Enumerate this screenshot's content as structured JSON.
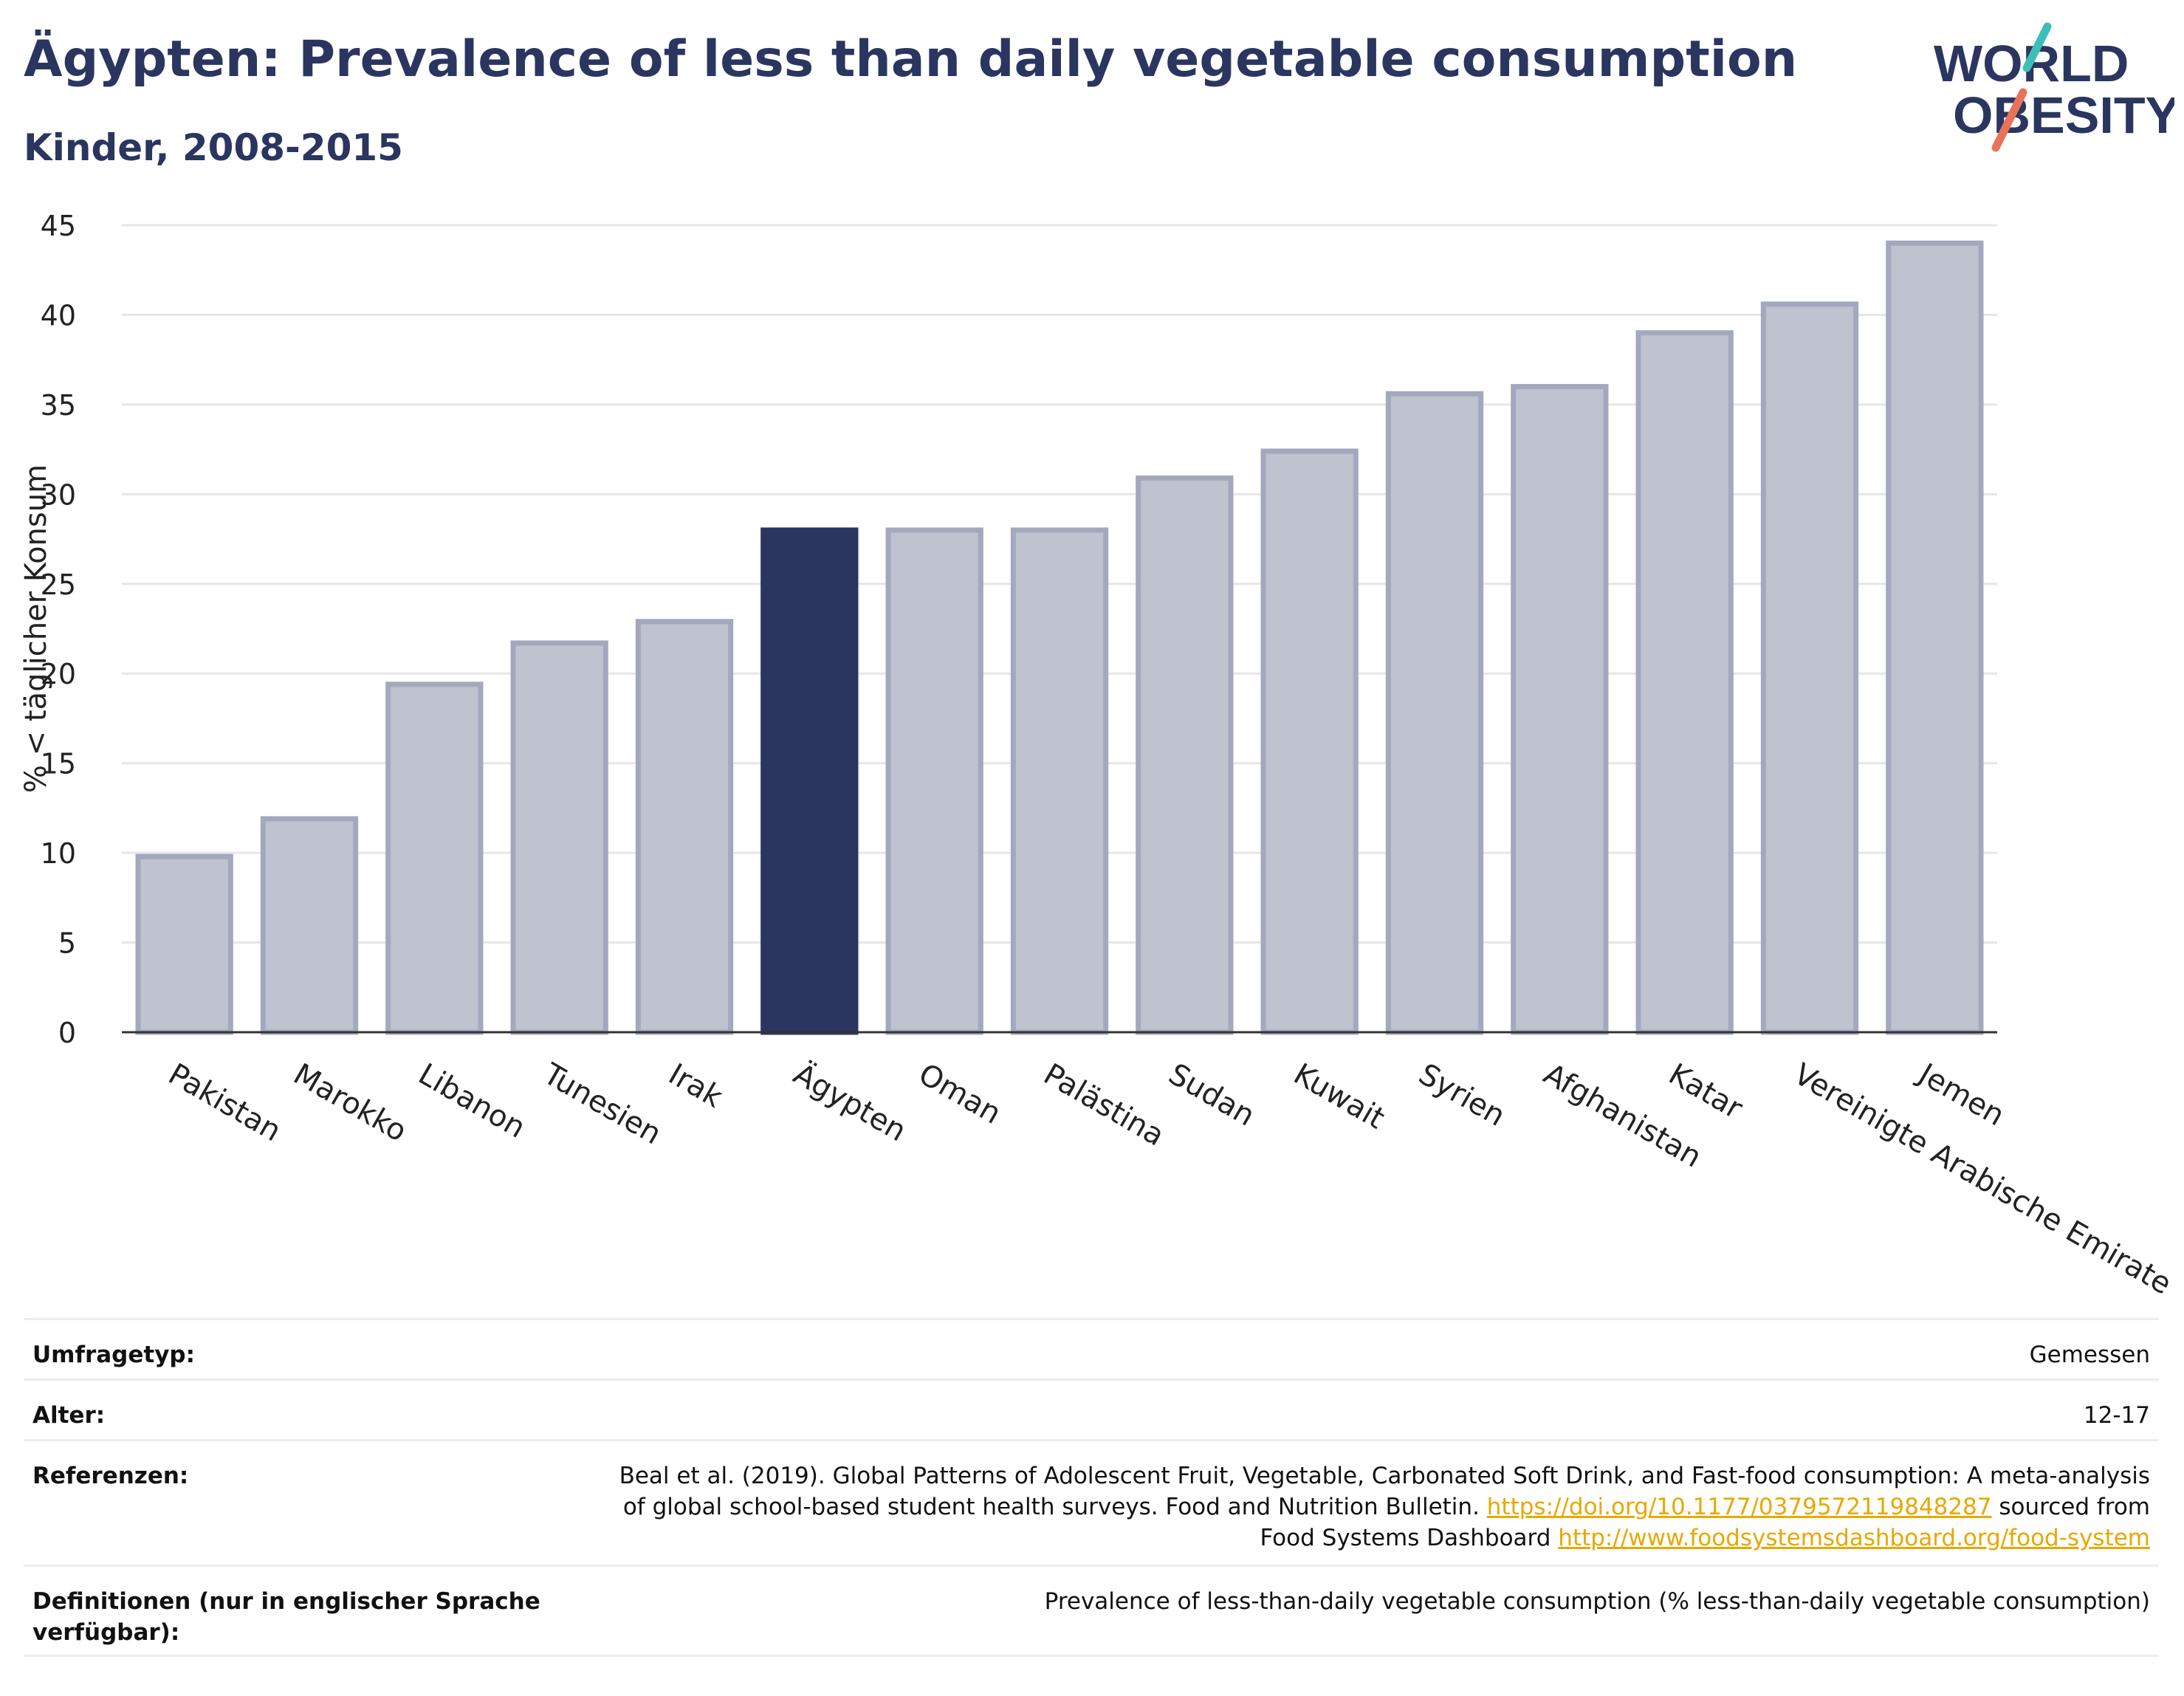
{
  "header": {
    "title": "Ägypten: Prevalence of less than daily vegetable consumption",
    "subtitle": "Kinder, 2008-2015"
  },
  "logo": {
    "line1": "WORLD",
    "line2": "OBESITY",
    "colors": {
      "text": "#2a3660",
      "slash_top": "#3dbfb8",
      "slash_bottom": "#e8735a"
    }
  },
  "colors": {
    "highlight_bar": "#2a3660",
    "bar_fill": "#bfc2cf",
    "bar_stroke": "#a4a8be",
    "gridline": "#e6e6e6",
    "link": "#e8a800"
  },
  "chart_data": {
    "type": "bar",
    "ylabel": "% < täglicher Konsum",
    "ylim": [
      0,
      45
    ],
    "yticks": [
      0,
      5,
      10,
      15,
      20,
      25,
      30,
      35,
      40,
      45
    ],
    "grid": true,
    "highlight": "Ägypten",
    "categories": [
      "Pakistan",
      "Marokko",
      "Libanon",
      "Tunesien",
      "Irak",
      "Ägypten",
      "Oman",
      "Palästina",
      "Sudan",
      "Kuwait",
      "Syrien",
      "Afghanistan",
      "Katar",
      "Vereinigte Arabische Emirate",
      "Jemen"
    ],
    "values": [
      9.8,
      11.9,
      19.4,
      21.7,
      22.9,
      28.0,
      28.0,
      28.0,
      30.9,
      32.4,
      35.6,
      36.0,
      39.0,
      40.6,
      44.0
    ]
  },
  "meta": {
    "rows": [
      {
        "label": "Umfragetyp:",
        "value": "Gemessen"
      },
      {
        "label": "Alter:",
        "value": "12-17"
      },
      {
        "label": "Referenzen:",
        "value_pre": "Beal et al. (2019). Global Patterns of Adolescent Fruit, Vegetable, Carbonated Soft Drink, and Fast-food consumption: A meta-analysis of global school-based student health surveys. Food and Nutrition Bulletin. ",
        "link1": "https://doi.org/10.1177/0379572119848287",
        "value_mid": " sourced from Food Systems Dashboard ",
        "link2": "http://www.foodsystemsdashboard.org/food-system"
      },
      {
        "label": "Definitionen (nur in englischer Sprache verfügbar):",
        "value": "Prevalence of less-than-daily vegetable consumption (% less-than-daily vegetable consumption)"
      }
    ]
  }
}
